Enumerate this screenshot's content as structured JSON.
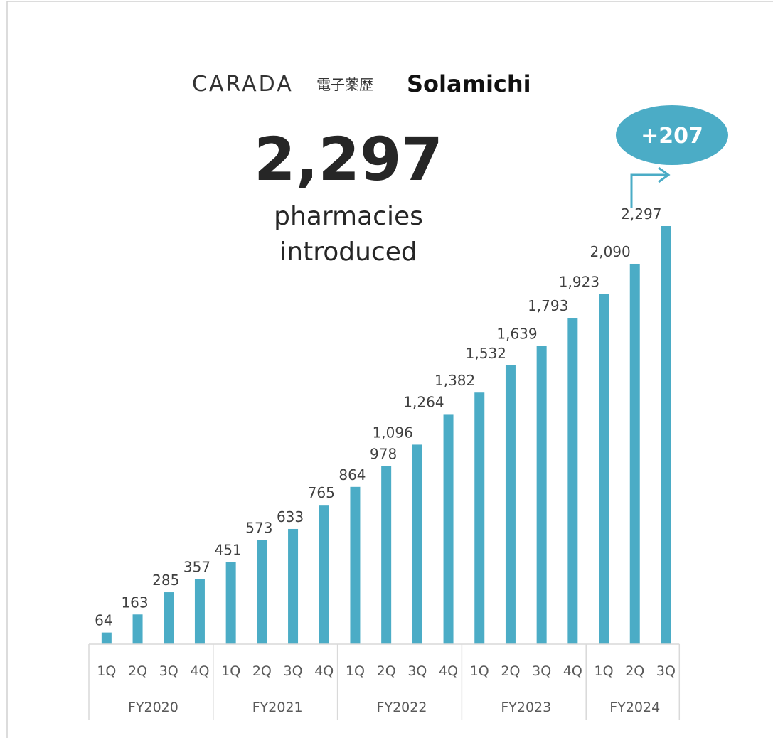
{
  "chart_data": {
    "type": "bar",
    "logo": {
      "brand": "CARADA",
      "product_ja": "電子薬歴",
      "product": "Solamichi"
    },
    "headline": "2,297",
    "subtitle": [
      "pharmacies",
      "introduced"
    ],
    "annotation": "+207",
    "color": "#4bacc6",
    "groups": [
      {
        "name": "FY2020",
        "categories": [
          "1Q",
          "2Q",
          "3Q",
          "4Q"
        ],
        "values": [
          64,
          163,
          285,
          357
        ],
        "value_labels": [
          "64",
          "163",
          "285",
          "357"
        ]
      },
      {
        "name": "FY2021",
        "categories": [
          "1Q",
          "2Q",
          "3Q",
          "4Q"
        ],
        "values": [
          451,
          573,
          633,
          765
        ],
        "value_labels": [
          "451",
          "573",
          "633",
          "765"
        ]
      },
      {
        "name": "FY2022",
        "categories": [
          "1Q",
          "2Q",
          "3Q",
          "4Q"
        ],
        "values": [
          864,
          978,
          1096,
          1264
        ],
        "value_labels": [
          "864",
          "978",
          "1,096",
          "1,264"
        ]
      },
      {
        "name": "FY2023",
        "categories": [
          "1Q",
          "2Q",
          "3Q",
          "4Q"
        ],
        "values": [
          1382,
          1532,
          1639,
          1793
        ],
        "value_labels": [
          "1,382",
          "1,532",
          "1,639",
          "1,793"
        ]
      },
      {
        "name": "FY2024",
        "categories": [
          "1Q",
          "2Q",
          "3Q"
        ],
        "values": [
          1923,
          2090,
          2297
        ],
        "value_labels": [
          "1,923",
          "2,090",
          "2,297"
        ]
      }
    ]
  }
}
